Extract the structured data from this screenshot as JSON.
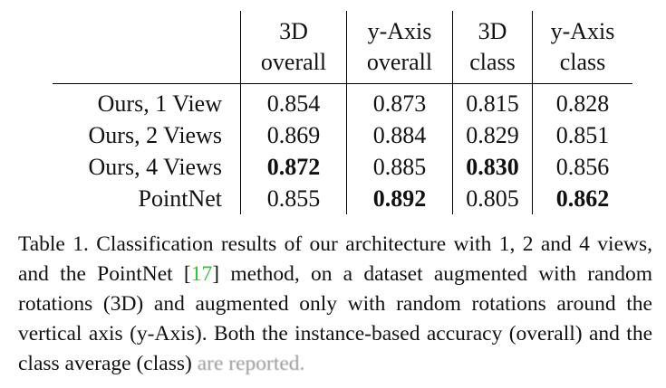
{
  "table": {
    "headers": [
      {
        "line1": "3D",
        "line2": "overall"
      },
      {
        "line1": "y-Axis",
        "line2": "overall"
      },
      {
        "line1": "3D",
        "line2": "class"
      },
      {
        "line1": "y-Axis",
        "line2": "class"
      }
    ],
    "rows": [
      {
        "label": "Ours, 1 View",
        "cells": [
          "0.854",
          "0.873",
          "0.815",
          "0.828"
        ]
      },
      {
        "label": "Ours, 2 Views",
        "cells": [
          "0.869",
          "0.884",
          "0.829",
          "0.851"
        ]
      },
      {
        "label": "Ours, 4 Views",
        "cells": [
          "0.872",
          "0.885",
          "0.830",
          "0.856"
        ]
      },
      {
        "label": "PointNet",
        "cells": [
          "0.855",
          "0.892",
          "0.805",
          "0.862"
        ]
      }
    ]
  },
  "caption": {
    "part1": "Table 1. Classification results of our architecture with 1, 2 and 4 views, and the PointNet [",
    "cite": "17",
    "part2": "] method, on a dataset augmented with random rotations (3D) and augmented only with random rotations around the vertical axis (y-Axis).  Both the instance-based accuracy (overall) and the class average (class) ",
    "faded": "are reported."
  }
}
